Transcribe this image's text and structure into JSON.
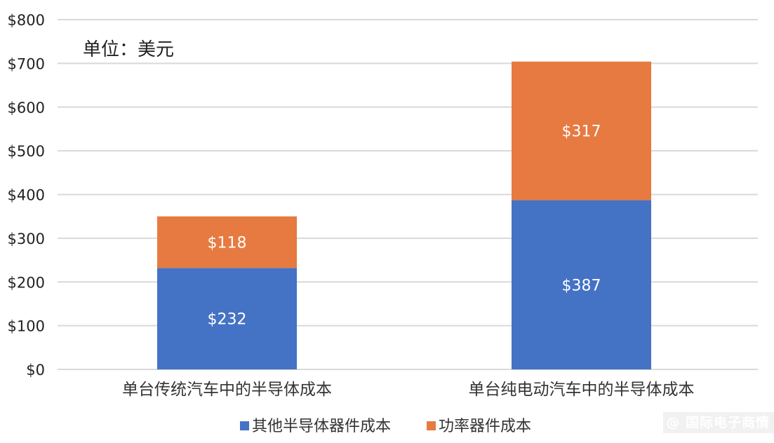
{
  "chart_data": {
    "type": "bar",
    "stacked": true,
    "unit_note": "单位：美元",
    "categories": [
      "单台传统汽车中的半导体成本",
      "单台纯电动汽车中的半导体成本"
    ],
    "series": [
      {
        "name": "其他半导体器件成本",
        "values": [
          232,
          387
        ],
        "color": "#4472C4"
      },
      {
        "name": "功率器件成本",
        "values": [
          118,
          317
        ],
        "color": "#E67A40"
      }
    ],
    "data_labels": [
      [
        "$232",
        "$387"
      ],
      [
        "$118",
        "$317"
      ]
    ],
    "ylim": [
      0,
      800
    ],
    "yticks": [
      "$0",
      "$100",
      "$200",
      "$300",
      "$400",
      "$500",
      "$600",
      "$700",
      "$800"
    ],
    "grid": true,
    "legend_position": "bottom"
  },
  "watermark": "@ 国际电子商情"
}
